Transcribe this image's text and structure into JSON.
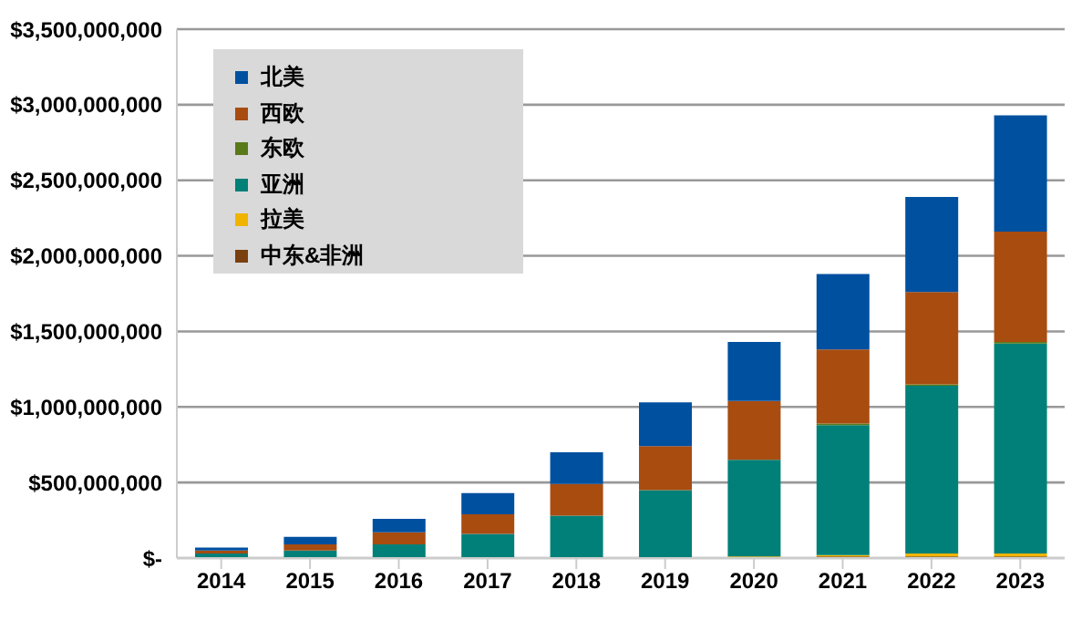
{
  "chart_data": {
    "type": "bar",
    "stacked": true,
    "categories": [
      "2014",
      "2015",
      "2016",
      "2017",
      "2018",
      "2019",
      "2020",
      "2021",
      "2022",
      "2023"
    ],
    "series": [
      {
        "name": "中东&非洲",
        "color": "#7a4010",
        "values": [
          0,
          0,
          0,
          0,
          0,
          0,
          0,
          10000000,
          10000000,
          10000000
        ]
      },
      {
        "name": "拉美",
        "color": "#f0b400",
        "values": [
          0,
          0,
          0,
          0,
          0,
          0,
          10000000,
          10000000,
          20000000,
          20000000
        ]
      },
      {
        "name": "亚洲",
        "color": "#008078",
        "values": [
          30000000,
          50000000,
          90000000,
          160000000,
          280000000,
          450000000,
          640000000,
          860000000,
          1110000000,
          1390000000
        ]
      },
      {
        "name": "东欧",
        "color": "#5a7a1a",
        "values": [
          0,
          0,
          0,
          0,
          0,
          0,
          0,
          10000000,
          10000000,
          10000000
        ]
      },
      {
        "name": "西欧",
        "color": "#a84c10",
        "values": [
          20000000,
          40000000,
          80000000,
          130000000,
          210000000,
          290000000,
          390000000,
          490000000,
          610000000,
          730000000
        ]
      },
      {
        "name": "北美",
        "color": "#0050a0",
        "values": [
          20000000,
          50000000,
          90000000,
          140000000,
          210000000,
          290000000,
          390000000,
          500000000,
          630000000,
          770000000
        ]
      }
    ],
    "ylim": [
      0,
      3500000000
    ],
    "yticks": [
      {
        "value": 0,
        "label": "$-"
      },
      {
        "value": 500000000,
        "label": "$500,000,000"
      },
      {
        "value": 1000000000,
        "label": "$1,000,000,000"
      },
      {
        "value": 1500000000,
        "label": "$1,500,000,000"
      },
      {
        "value": 2000000000,
        "label": "$2,000,000,000"
      },
      {
        "value": 2500000000,
        "label": "$2,500,000,000"
      },
      {
        "value": 3000000000,
        "label": "$3,000,000,000"
      },
      {
        "value": 3500000000,
        "label": "$3,500,000,000"
      }
    ],
    "grid": "y",
    "legend": "top left"
  }
}
